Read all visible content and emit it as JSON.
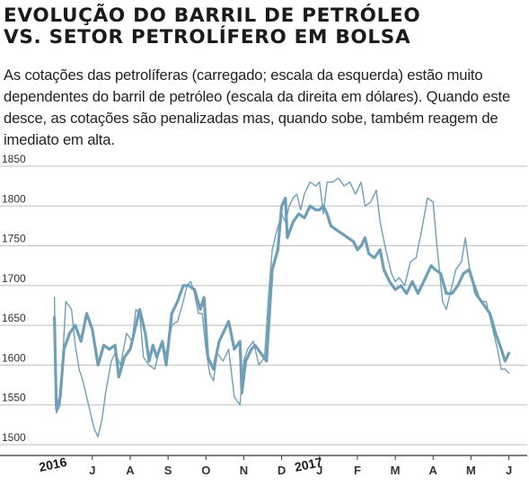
{
  "header": {
    "title_line1": "EVOLUÇÃO DO BARRIL DE PETRÓLEO",
    "title_line2": "VS. SETOR PETROLÍFERO EM BOLSA",
    "subtitle": "As cotações das petrolíferas (carregado; escala da esquerda) estão muito dependentes do barril de petróleo (escala da direita em dólares). Quando este desce, as cotações são penalizadas mas, quando sobe, também reagem de imediato em alta."
  },
  "chart_data": {
    "type": "line",
    "title": "EVOLUÇÃO DO BARRIL DE PETRÓLEO VS. SETOR PETROLÍFERO EM BOLSA",
    "ylim": [
      1500,
      1850
    ],
    "y_ticks": [
      1850,
      1800,
      1750,
      1700,
      1650,
      1600,
      1550,
      1500
    ],
    "x_ticks": [
      {
        "label": "2016",
        "t": 0.0,
        "year": true
      },
      {
        "label": "J",
        "t": 1.0
      },
      {
        "label": "A",
        "t": 2.0
      },
      {
        "label": "S",
        "t": 3.0
      },
      {
        "label": "O",
        "t": 4.0
      },
      {
        "label": "N",
        "t": 5.0
      },
      {
        "label": "D",
        "t": 6.0
      },
      {
        "label": "2017",
        "t": 6.75,
        "year": true
      },
      {
        "label": "J",
        "t": 7.0
      },
      {
        "label": "F",
        "t": 8.0
      },
      {
        "label": "M",
        "t": 9.0
      },
      {
        "label": "A",
        "t": 10.0
      },
      {
        "label": "M",
        "t": 11.0
      },
      {
        "label": "J",
        "t": 12.0
      }
    ],
    "xlim": [
      -0.3,
      12.2
    ],
    "grid": true,
    "colors": {
      "series": "#6e9fb7",
      "grid": "#bfbfbf",
      "axis": "#333333"
    },
    "series": [
      {
        "style": "bold",
        "points": [
          [
            0.0,
            1660
          ],
          [
            0.05,
            1545
          ],
          [
            0.15,
            1560
          ],
          [
            0.25,
            1620
          ],
          [
            0.4,
            1640
          ],
          [
            0.55,
            1650
          ],
          [
            0.7,
            1630
          ],
          [
            0.85,
            1665
          ],
          [
            1.0,
            1645
          ],
          [
            1.15,
            1600
          ],
          [
            1.3,
            1625
          ],
          [
            1.45,
            1620
          ],
          [
            1.6,
            1625
          ],
          [
            1.7,
            1585
          ],
          [
            1.85,
            1610
          ],
          [
            2.0,
            1620
          ],
          [
            2.15,
            1650
          ],
          [
            2.25,
            1670
          ],
          [
            2.4,
            1640
          ],
          [
            2.5,
            1605
          ],
          [
            2.6,
            1625
          ],
          [
            2.7,
            1610
          ],
          [
            2.85,
            1630
          ],
          [
            2.95,
            1600
          ],
          [
            3.1,
            1665
          ],
          [
            3.25,
            1680
          ],
          [
            3.4,
            1700
          ],
          [
            3.55,
            1700
          ],
          [
            3.7,
            1695
          ],
          [
            3.85,
            1670
          ],
          [
            3.95,
            1685
          ],
          [
            4.05,
            1610
          ],
          [
            4.2,
            1595
          ],
          [
            4.35,
            1630
          ],
          [
            4.45,
            1640
          ],
          [
            4.6,
            1655
          ],
          [
            4.75,
            1620
          ],
          [
            4.9,
            1630
          ],
          [
            4.95,
            1565
          ],
          [
            5.05,
            1605
          ],
          [
            5.2,
            1620
          ],
          [
            5.3,
            1625
          ],
          [
            5.45,
            1615
          ],
          [
            5.6,
            1605
          ],
          [
            5.75,
            1720
          ],
          [
            5.9,
            1745
          ],
          [
            6.0,
            1800
          ],
          [
            6.1,
            1810
          ],
          [
            6.15,
            1760
          ],
          [
            6.3,
            1780
          ],
          [
            6.45,
            1790
          ],
          [
            6.6,
            1785
          ],
          [
            6.75,
            1800
          ],
          [
            6.9,
            1795
          ],
          [
            7.0,
            1795
          ],
          [
            7.1,
            1800
          ],
          [
            7.2,
            1790
          ],
          [
            7.3,
            1775
          ],
          [
            7.45,
            1770
          ],
          [
            7.6,
            1765
          ],
          [
            7.75,
            1760
          ],
          [
            7.9,
            1755
          ],
          [
            8.0,
            1745
          ],
          [
            8.1,
            1750
          ],
          [
            8.2,
            1760
          ],
          [
            8.3,
            1740
          ],
          [
            8.45,
            1735
          ],
          [
            8.6,
            1745
          ],
          [
            8.7,
            1720
          ],
          [
            8.85,
            1705
          ],
          [
            9.0,
            1695
          ],
          [
            9.15,
            1700
          ],
          [
            9.3,
            1690
          ],
          [
            9.45,
            1705
          ],
          [
            9.6,
            1690
          ],
          [
            9.8,
            1710
          ],
          [
            9.95,
            1725
          ],
          [
            10.05,
            1720
          ],
          [
            10.2,
            1715
          ],
          [
            10.35,
            1690
          ],
          [
            10.5,
            1690
          ],
          [
            10.65,
            1700
          ],
          [
            10.8,
            1715
          ],
          [
            10.95,
            1720
          ],
          [
            11.05,
            1705
          ],
          [
            11.2,
            1685
          ],
          [
            11.35,
            1675
          ],
          [
            11.5,
            1665
          ],
          [
            11.65,
            1640
          ],
          [
            11.8,
            1620
          ],
          [
            11.9,
            1605
          ],
          [
            12.0,
            1615
          ]
        ]
      },
      {
        "style": "thin",
        "points": [
          [
            0.0,
            1685
          ],
          [
            0.05,
            1540
          ],
          [
            0.15,
            1550
          ],
          [
            0.3,
            1680
          ],
          [
            0.45,
            1670
          ],
          [
            0.55,
            1625
          ],
          [
            0.65,
            1595
          ],
          [
            0.75,
            1580
          ],
          [
            0.85,
            1560
          ],
          [
            0.95,
            1540
          ],
          [
            1.05,
            1520
          ],
          [
            1.15,
            1510
          ],
          [
            1.25,
            1530
          ],
          [
            1.35,
            1565
          ],
          [
            1.5,
            1605
          ],
          [
            1.6,
            1615
          ],
          [
            1.75,
            1600
          ],
          [
            1.9,
            1640
          ],
          [
            2.05,
            1630
          ],
          [
            2.15,
            1670
          ],
          [
            2.25,
            1665
          ],
          [
            2.35,
            1610
          ],
          [
            2.5,
            1600
          ],
          [
            2.65,
            1595
          ],
          [
            2.8,
            1625
          ],
          [
            2.95,
            1615
          ],
          [
            3.1,
            1650
          ],
          [
            3.25,
            1655
          ],
          [
            3.4,
            1680
          ],
          [
            3.5,
            1700
          ],
          [
            3.6,
            1705
          ],
          [
            3.7,
            1690
          ],
          [
            3.8,
            1665
          ],
          [
            3.9,
            1665
          ],
          [
            4.0,
            1620
          ],
          [
            4.1,
            1590
          ],
          [
            4.2,
            1580
          ],
          [
            4.3,
            1615
          ],
          [
            4.45,
            1605
          ],
          [
            4.6,
            1620
          ],
          [
            4.75,
            1560
          ],
          [
            4.9,
            1550
          ],
          [
            5.0,
            1605
          ],
          [
            5.1,
            1620
          ],
          [
            5.25,
            1630
          ],
          [
            5.4,
            1600
          ],
          [
            5.55,
            1610
          ],
          [
            5.65,
            1685
          ],
          [
            5.75,
            1745
          ],
          [
            5.85,
            1765
          ],
          [
            6.0,
            1790
          ],
          [
            6.1,
            1780
          ],
          [
            6.2,
            1800
          ],
          [
            6.3,
            1810
          ],
          [
            6.4,
            1815
          ],
          [
            6.5,
            1795
          ],
          [
            6.6,
            1815
          ],
          [
            6.75,
            1830
          ],
          [
            6.9,
            1825
          ],
          [
            7.0,
            1830
          ],
          [
            7.1,
            1790
          ],
          [
            7.2,
            1830
          ],
          [
            7.35,
            1830
          ],
          [
            7.5,
            1835
          ],
          [
            7.65,
            1825
          ],
          [
            7.8,
            1830
          ],
          [
            7.95,
            1815
          ],
          [
            8.1,
            1830
          ],
          [
            8.2,
            1800
          ],
          [
            8.35,
            1805
          ],
          [
            8.5,
            1820
          ],
          [
            8.6,
            1780
          ],
          [
            8.75,
            1745
          ],
          [
            8.9,
            1715
          ],
          [
            9.0,
            1705
          ],
          [
            9.1,
            1710
          ],
          [
            9.25,
            1700
          ],
          [
            9.4,
            1730
          ],
          [
            9.55,
            1735
          ],
          [
            9.7,
            1770
          ],
          [
            9.85,
            1810
          ],
          [
            10.0,
            1805
          ],
          [
            10.1,
            1750
          ],
          [
            10.25,
            1680
          ],
          [
            10.35,
            1670
          ],
          [
            10.5,
            1700
          ],
          [
            10.6,
            1720
          ],
          [
            10.75,
            1730
          ],
          [
            10.85,
            1760
          ],
          [
            10.95,
            1725
          ],
          [
            11.1,
            1690
          ],
          [
            11.25,
            1680
          ],
          [
            11.4,
            1680
          ],
          [
            11.55,
            1650
          ],
          [
            11.7,
            1620
          ],
          [
            11.8,
            1595
          ],
          [
            11.9,
            1595
          ],
          [
            12.0,
            1590
          ]
        ]
      }
    ]
  }
}
